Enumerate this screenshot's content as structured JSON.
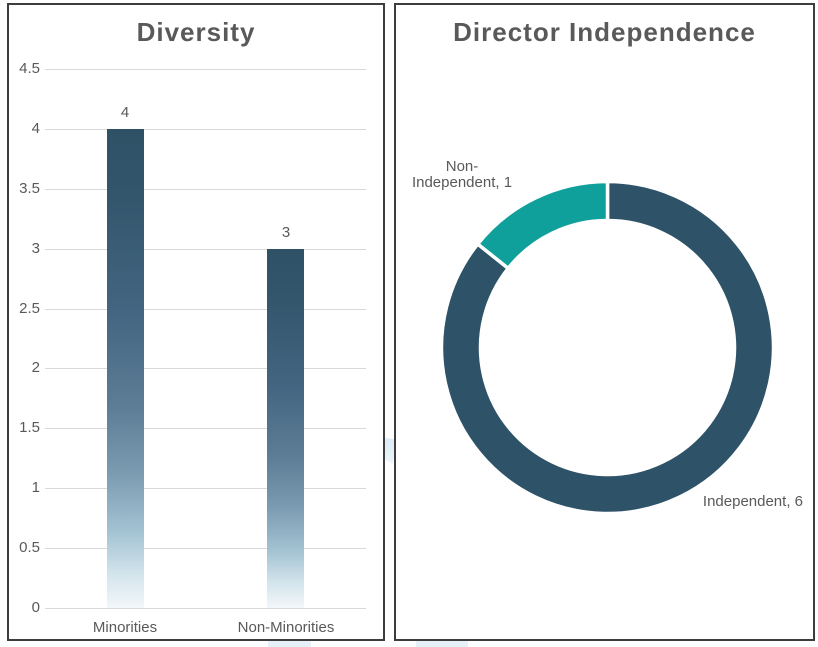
{
  "colors": {
    "panel_border": "#3d3d3d",
    "title_text": "#595959",
    "tick_text": "#595959",
    "gridline": "#d9d9d9",
    "bar_gradient_top": "#2f5166",
    "bar_gradient_bottom": "#f2f7fa",
    "independent_slice": "#2e5268",
    "non_independent_slice": "#10a09b",
    "watermark_blue": "#d9e9f5"
  },
  "chart_data": [
    {
      "type": "bar",
      "title": "Diversity",
      "categories": [
        "Minorities",
        "Non-Minorities"
      ],
      "values": [
        4,
        3
      ],
      "value_labels": [
        "4",
        "3"
      ],
      "xlabel": "",
      "ylabel": "",
      "ylim": [
        0,
        4.5
      ],
      "y_ticks": [
        0,
        0.5,
        1,
        1.5,
        2,
        2.5,
        3,
        3.5,
        4,
        4.5
      ],
      "y_tick_labels": [
        "0",
        "0.5",
        "1",
        "1.5",
        "2",
        "2.5",
        "3",
        "3.5",
        "4",
        "4.5"
      ],
      "grid": true,
      "legend": "none",
      "bar_style": "vertical gradient fading from dark slate blue at top to near-white at base"
    },
    {
      "type": "pie",
      "subtype": "donut",
      "title": "Director Independence",
      "series": [
        {
          "name": "Independent",
          "value": 6,
          "color": "#2e5268",
          "label_text": "Independent, 6",
          "label_lines": [
            "Independent, 6"
          ]
        },
        {
          "name": "Non-Independent",
          "value": 1,
          "color": "#10a09b",
          "label_text": "Non-Independent, 1",
          "label_lines": [
            "Non-",
            "Independent, 1"
          ]
        }
      ],
      "total": 7,
      "start_angle_deg": 0,
      "direction": "clockwise",
      "slice_separator": "white",
      "legend": "none"
    }
  ]
}
